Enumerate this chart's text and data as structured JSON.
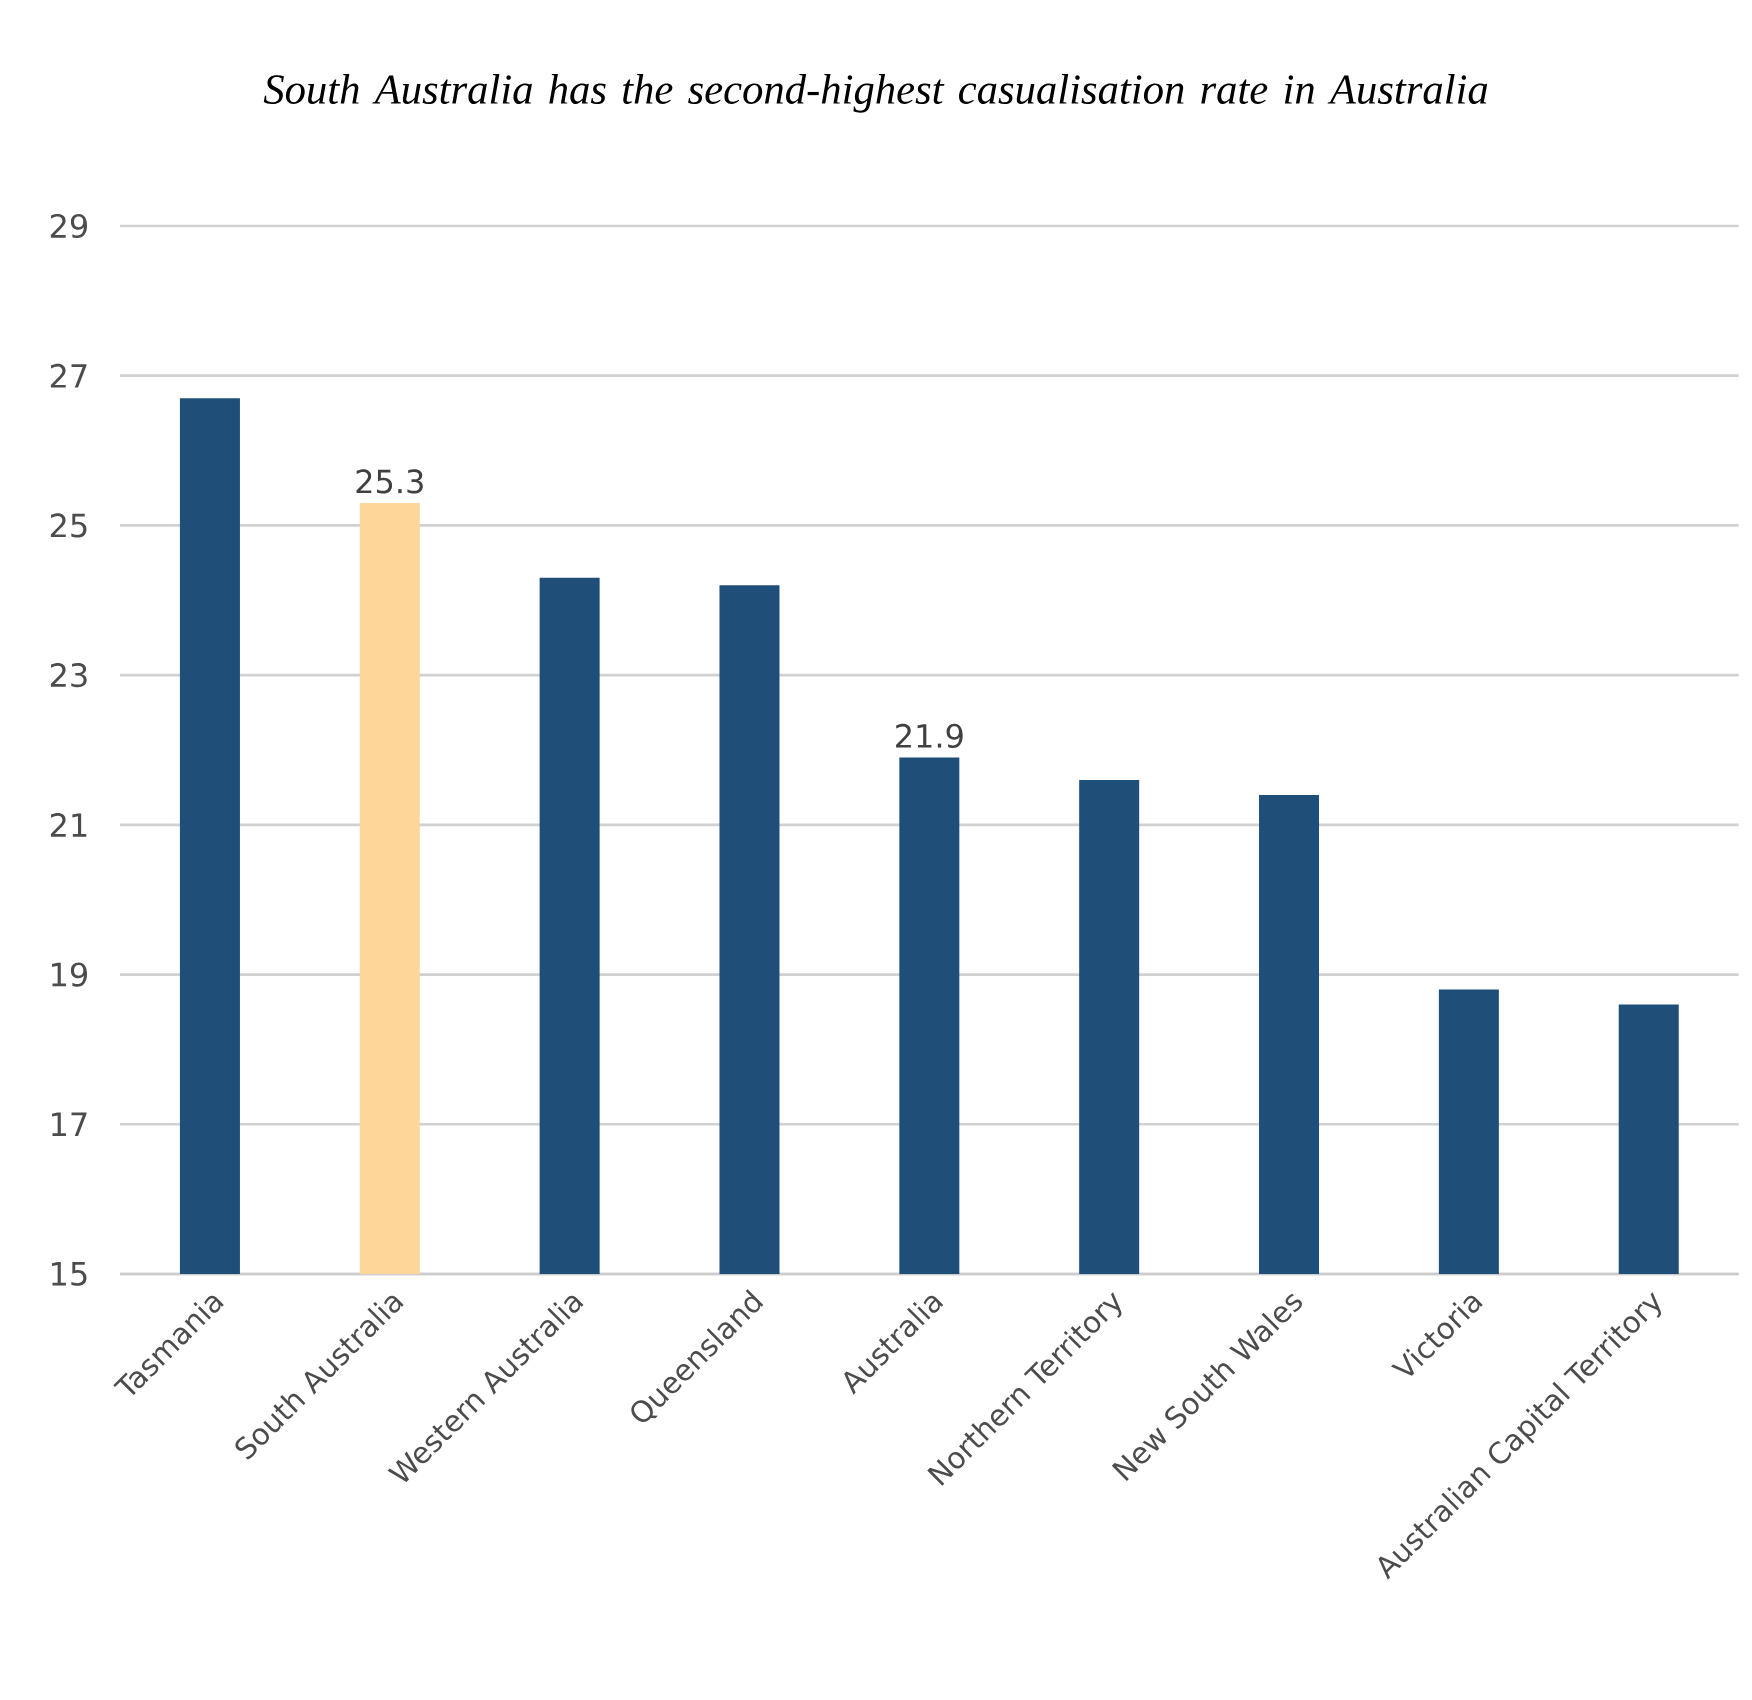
{
  "chart_data": {
    "type": "bar",
    "title": "South Australia has the second-highest casualisation rate in Australia",
    "categories": [
      "Tasmania",
      "South Australia",
      "Western Australia",
      "Queensland",
      "Australia",
      "Northern Territory",
      "New South Wales",
      "Victoria",
      "Australian Capital Territory"
    ],
    "values": [
      26.7,
      25.3,
      24.3,
      24.2,
      21.9,
      21.6,
      21.4,
      18.8,
      18.6
    ],
    "colors": [
      "#1f4e79",
      "#ffd699",
      "#1f4e79",
      "#1f4e79",
      "#1f4e79",
      "#1f4e79",
      "#1f4e79",
      "#1f4e79",
      "#1f4e79"
    ],
    "value_labels": [
      null,
      "25.3",
      null,
      null,
      "21.9",
      null,
      null,
      null,
      null
    ],
    "ylim": [
      15,
      29
    ],
    "yticks": [
      15,
      17,
      19,
      21,
      23,
      25,
      27,
      29
    ],
    "grid": "y"
  }
}
